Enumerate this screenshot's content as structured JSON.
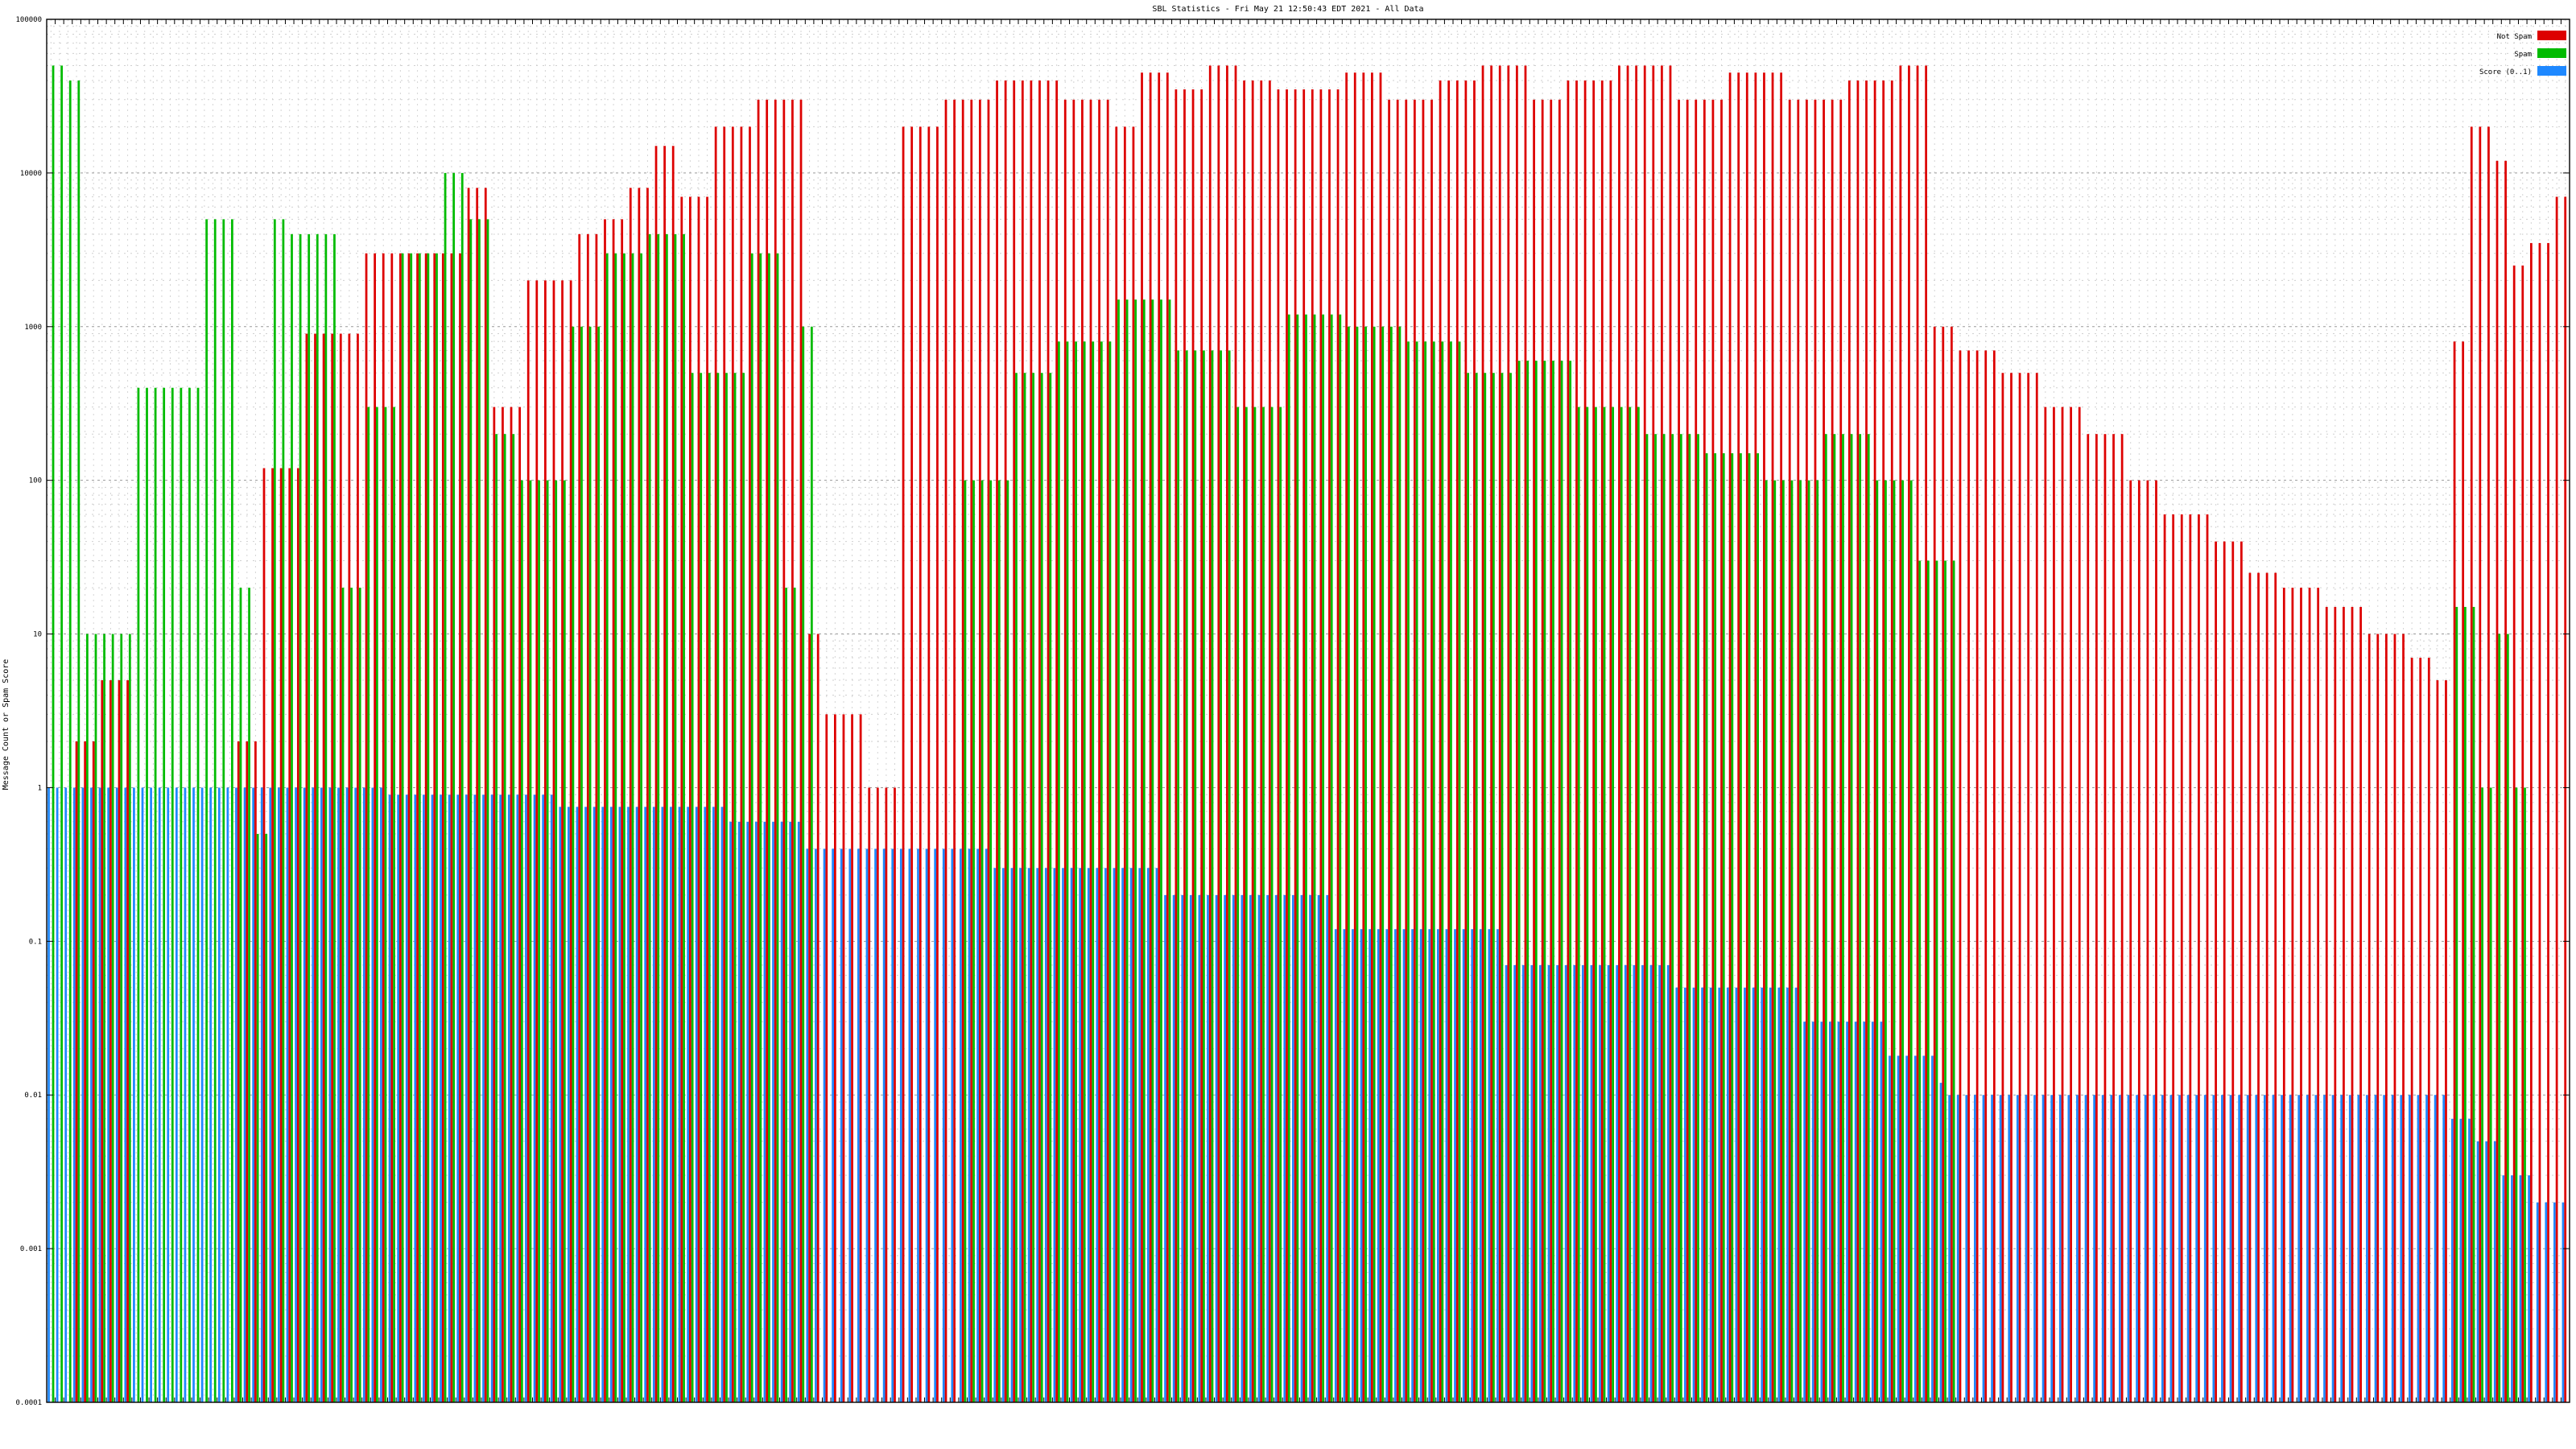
{
  "chart_data": {
    "type": "bar",
    "title": "SBL Statistics - Fri May 21 12:50:43 EDT 2021 - All Data",
    "ylabel": "Message Count or Spam Score",
    "y_scale": "log",
    "ylim": [
      0.0001,
      100000
    ],
    "yticks": [
      "0.0001",
      "0.001",
      "0.01",
      "0.1",
      "1",
      "10",
      "100",
      "1000",
      "10000",
      "100000"
    ],
    "grid": true,
    "legend_placement": "top-right",
    "colors": {
      "not_spam": "#dd0000",
      "spam": "#00bb00",
      "score": "#1e88ff",
      "frame": "#000000"
    },
    "series": [
      {
        "key": "not_spam",
        "name": "Not Spam"
      },
      {
        "key": "spam",
        "name": "Spam"
      },
      {
        "key": "score",
        "name": "Score (0..1)"
      }
    ],
    "category_count": 296,
    "not_spam_segments": [
      [
        0,
        1,
        0
      ],
      [
        3,
        5,
        2
      ],
      [
        6,
        9,
        5
      ],
      [
        22,
        24,
        2
      ],
      [
        25,
        29,
        120
      ],
      [
        30,
        36,
        900
      ],
      [
        37,
        48,
        3000
      ],
      [
        49,
        51,
        8000
      ],
      [
        52,
        55,
        300
      ],
      [
        56,
        61,
        2000
      ],
      [
        62,
        64,
        4000
      ],
      [
        65,
        67,
        5000
      ],
      [
        68,
        70,
        8000
      ],
      [
        71,
        73,
        15000
      ],
      [
        74,
        77,
        7000
      ],
      [
        78,
        82,
        20000
      ],
      [
        83,
        88,
        30000
      ],
      [
        89,
        90,
        10
      ],
      [
        91,
        95,
        3
      ],
      [
        96,
        99,
        1
      ],
      [
        100,
        104,
        20000
      ],
      [
        105,
        110,
        30000
      ],
      [
        111,
        118,
        40000
      ],
      [
        119,
        124,
        30000
      ],
      [
        125,
        127,
        20000
      ],
      [
        128,
        131,
        45000
      ],
      [
        132,
        135,
        35000
      ],
      [
        136,
        139,
        50000
      ],
      [
        140,
        143,
        40000
      ],
      [
        144,
        151,
        35000
      ],
      [
        152,
        156,
        45000
      ],
      [
        157,
        162,
        30000
      ],
      [
        163,
        167,
        40000
      ],
      [
        168,
        173,
        50000
      ],
      [
        174,
        177,
        30000
      ],
      [
        178,
        183,
        40000
      ],
      [
        184,
        190,
        50000
      ],
      [
        191,
        196,
        30000
      ],
      [
        197,
        203,
        45000
      ],
      [
        204,
        210,
        30000
      ],
      [
        211,
        216,
        40000
      ],
      [
        217,
        220,
        50000
      ],
      [
        221,
        223,
        1000
      ],
      [
        224,
        228,
        700
      ],
      [
        229,
        233,
        500
      ],
      [
        234,
        238,
        300
      ],
      [
        239,
        243,
        200
      ],
      [
        244,
        247,
        100
      ],
      [
        248,
        253,
        60
      ],
      [
        254,
        257,
        40
      ],
      [
        258,
        261,
        25
      ],
      [
        262,
        266,
        20
      ],
      [
        267,
        271,
        15
      ],
      [
        272,
        276,
        10
      ],
      [
        277,
        279,
        7
      ],
      [
        280,
        281,
        5
      ],
      [
        282,
        283,
        800
      ],
      [
        284,
        286,
        20000
      ],
      [
        287,
        288,
        12000
      ],
      [
        289,
        290,
        2500
      ],
      [
        291,
        293,
        3500
      ],
      [
        294,
        295,
        7000
      ]
    ],
    "spam_segments": [
      [
        0,
        1,
        50000
      ],
      [
        2,
        3,
        40000
      ],
      [
        4,
        9,
        10
      ],
      [
        10,
        17,
        400
      ],
      [
        18,
        21,
        5000
      ],
      [
        22,
        23,
        20
      ],
      [
        24,
        25,
        0.5
      ],
      [
        26,
        27,
        5000
      ],
      [
        28,
        33,
        4000
      ],
      [
        34,
        36,
        20
      ],
      [
        37,
        40,
        300
      ],
      [
        41,
        45,
        3000
      ],
      [
        46,
        48,
        10000
      ],
      [
        49,
        51,
        5000
      ],
      [
        52,
        54,
        200
      ],
      [
        55,
        60,
        100
      ],
      [
        61,
        64,
        1000
      ],
      [
        65,
        69,
        3000
      ],
      [
        70,
        74,
        4000
      ],
      [
        75,
        81,
        500
      ],
      [
        82,
        85,
        3000
      ],
      [
        86,
        87,
        20
      ],
      [
        88,
        89,
        1000
      ],
      [
        90,
        106,
        0
      ],
      [
        107,
        112,
        100
      ],
      [
        113,
        117,
        500
      ],
      [
        118,
        124,
        800
      ],
      [
        125,
        131,
        1500
      ],
      [
        132,
        138,
        700
      ],
      [
        139,
        144,
        300
      ],
      [
        145,
        151,
        1200
      ],
      [
        152,
        158,
        1000
      ],
      [
        159,
        165,
        800
      ],
      [
        166,
        171,
        500
      ],
      [
        172,
        178,
        600
      ],
      [
        179,
        186,
        300
      ],
      [
        187,
        193,
        200
      ],
      [
        194,
        200,
        150
      ],
      [
        201,
        207,
        100
      ],
      [
        208,
        213,
        200
      ],
      [
        214,
        218,
        100
      ],
      [
        219,
        223,
        30
      ],
      [
        224,
        281,
        0
      ],
      [
        282,
        284,
        15
      ],
      [
        285,
        286,
        1
      ],
      [
        287,
        288,
        10
      ],
      [
        289,
        290,
        1
      ],
      [
        291,
        295,
        0
      ]
    ],
    "score_segments": [
      [
        0,
        39,
        1
      ],
      [
        40,
        59,
        0.9
      ],
      [
        60,
        79,
        0.75
      ],
      [
        80,
        88,
        0.6
      ],
      [
        89,
        110,
        0.4
      ],
      [
        111,
        130,
        0.3
      ],
      [
        131,
        150,
        0.2
      ],
      [
        151,
        170,
        0.12
      ],
      [
        171,
        190,
        0.07
      ],
      [
        191,
        205,
        0.05
      ],
      [
        206,
        215,
        0.03
      ],
      [
        216,
        221,
        0.018
      ],
      [
        222,
        222,
        0.012
      ],
      [
        223,
        281,
        0.01
      ],
      [
        282,
        284,
        0.007
      ],
      [
        285,
        287,
        0.005
      ],
      [
        288,
        291,
        0.003
      ],
      [
        292,
        295,
        0.002
      ]
    ]
  }
}
